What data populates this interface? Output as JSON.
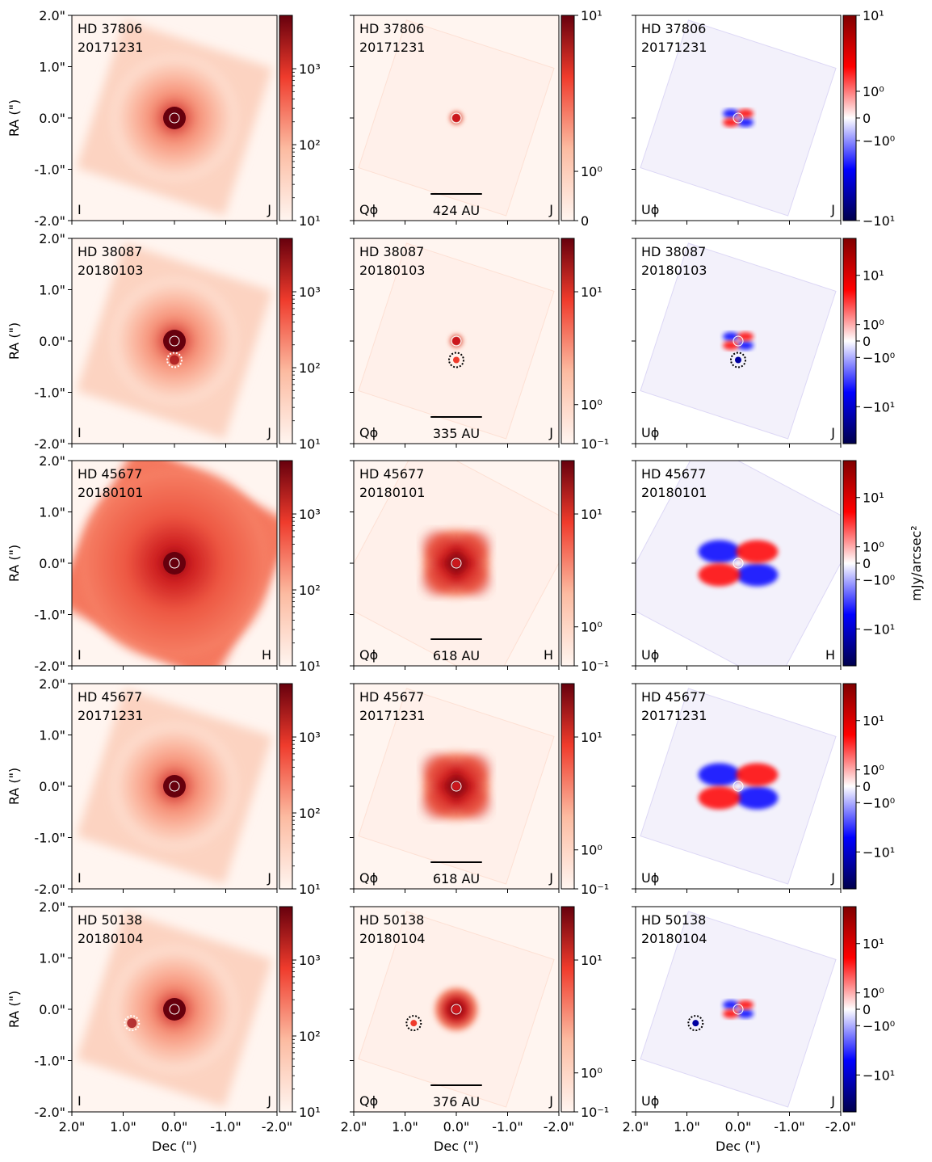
{
  "chart_data": {
    "type": "heatmap",
    "title": "",
    "xlabel": "Dec (\")",
    "ylabel": "RA (\")",
    "xlim": [
      2.0,
      -2.0
    ],
    "ylim": [
      -2.0,
      2.0
    ],
    "x_ticks": [
      "2.0\"",
      "1.0\"",
      "0.0\"",
      "-1.0\"",
      "-2.0\""
    ],
    "y_ticks": [
      "2.0\"",
      "1.0\"",
      "0.0\"",
      "-1.0\"",
      "-2.0\""
    ],
    "colorbar_unit": "mJy/arcsec²",
    "column_labels": [
      "I",
      "Qϕ",
      "Uϕ"
    ],
    "rows": [
      {
        "star": "HD 37806",
        "date": "20171231",
        "band": "J",
        "scale_bar": "424 AU",
        "companion": null,
        "colorbar_ticks": {
          "I": [
            "10³",
            "10²",
            "10¹"
          ],
          "Q": [
            "10¹",
            "10⁰",
            "0"
          ],
          "U": [
            "10¹",
            "10⁰",
            "0",
            "−10⁰",
            "−10¹"
          ]
        }
      },
      {
        "star": "HD 38087",
        "date": "20180103",
        "band": "J",
        "scale_bar": "335 AU",
        "companion": {
          "dec": 0.0,
          "ra": -0.37
        },
        "colorbar_ticks": {
          "I": [
            "10³",
            "10²",
            "10¹"
          ],
          "Q": [
            "10¹",
            "10⁰",
            "10⁻¹"
          ],
          "U": [
            "10¹",
            "10⁰",
            "0",
            "−10⁰",
            "−10¹"
          ]
        }
      },
      {
        "star": "HD 45677",
        "date": "20180101",
        "band": "H",
        "scale_bar": "618 AU",
        "companion": null,
        "colorbar_ticks": {
          "I": [
            "10³",
            "10²",
            "10¹"
          ],
          "Q": [
            "10¹",
            "10⁰",
            "10⁻¹"
          ],
          "U": [
            "10¹",
            "10⁰",
            "0",
            "−10⁰",
            "−10¹"
          ]
        }
      },
      {
        "star": "HD 45677",
        "date": "20171231",
        "band": "J",
        "scale_bar": "618 AU",
        "companion": null,
        "colorbar_ticks": {
          "I": [
            "10³",
            "10²",
            "10¹"
          ],
          "Q": [
            "10¹",
            "10⁰",
            "10⁻¹"
          ],
          "U": [
            "10¹",
            "10⁰",
            "0",
            "−10⁰",
            "−10¹"
          ]
        }
      },
      {
        "star": "HD 50138",
        "date": "20180104",
        "band": "J",
        "scale_bar": "376 AU",
        "companion": {
          "dec": 0.83,
          "ra": -0.27
        },
        "colorbar_ticks": {
          "I": [
            "10³",
            "10²",
            "10¹"
          ],
          "Q": [
            "10¹",
            "10⁰",
            "10⁻¹"
          ],
          "U": [
            "10¹",
            "10⁰",
            "0",
            "−10⁰",
            "−10¹"
          ]
        }
      }
    ]
  },
  "colors": {
    "red_dark": "#67000d",
    "red_mid": "#ef3b2c",
    "red_light": "#fcbba1",
    "background": "#fff5f0",
    "blue_dark": "#00004c",
    "blue": "#0000ff",
    "red_bwr": "#ff0000"
  }
}
